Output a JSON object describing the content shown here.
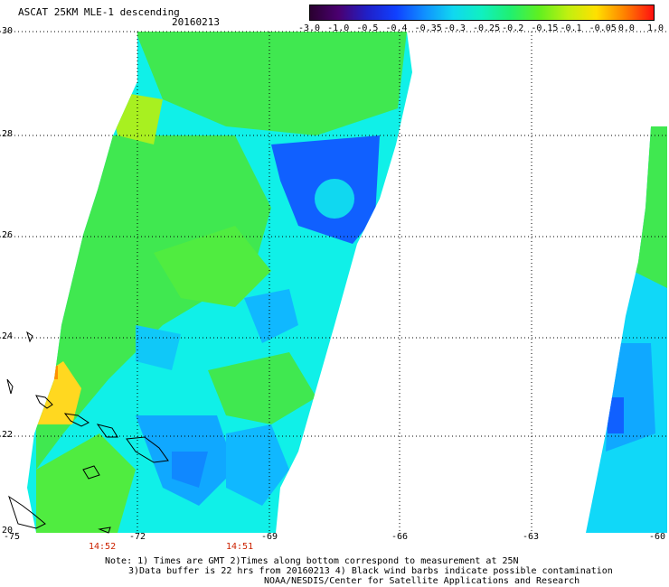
{
  "header": {
    "title": "ASCAT 25KM MLE-1 descending",
    "date": "20160213"
  },
  "colorbar": {
    "labels": [
      "-3.0",
      "-1.0",
      "-0.5",
      "-0.4",
      "-0.35",
      "-0.3",
      "-0.25",
      "-0.2",
      "-0.15",
      "-0.1",
      "-0.05",
      "0.0",
      "1.0"
    ],
    "colors": [
      "#2a0030",
      "#4a0070",
      "#2020c8",
      "#1040ff",
      "#1090ff",
      "#10d8f0",
      "#10f0c0",
      "#20f070",
      "#60f020",
      "#c0f010",
      "#ffe000",
      "#ff8000",
      "#ff1010"
    ]
  },
  "axes": {
    "lat_labels": [
      "30",
      "28",
      "26",
      "24",
      "22",
      "20"
    ],
    "lon_labels": [
      "-75",
      "-72",
      "-69",
      "-66",
      "-63",
      "-60"
    ],
    "lat_range": [
      20,
      30
    ],
    "lon_range": [
      -75,
      -60
    ],
    "grid": "dotted"
  },
  "pass_times": [
    "14:52",
    "14:51"
  ],
  "notes": {
    "line1": "Note: 1) Times are GMT 2)Times along bottom correspond to measurement at 25N",
    "line2": "3)Data buffer is 22 hrs from 20160213 4) Black wind barbs indicate possible contamination",
    "line3": "NOAA/NESDIS/Center for Satellite Applications and Research"
  },
  "palette": {
    "swath_green": "#40e850",
    "swath_cyan": "#10f0e8",
    "swath_blue": "#1060ff",
    "swath_yellow": "#ffd820",
    "land_outline": "#000000"
  }
}
